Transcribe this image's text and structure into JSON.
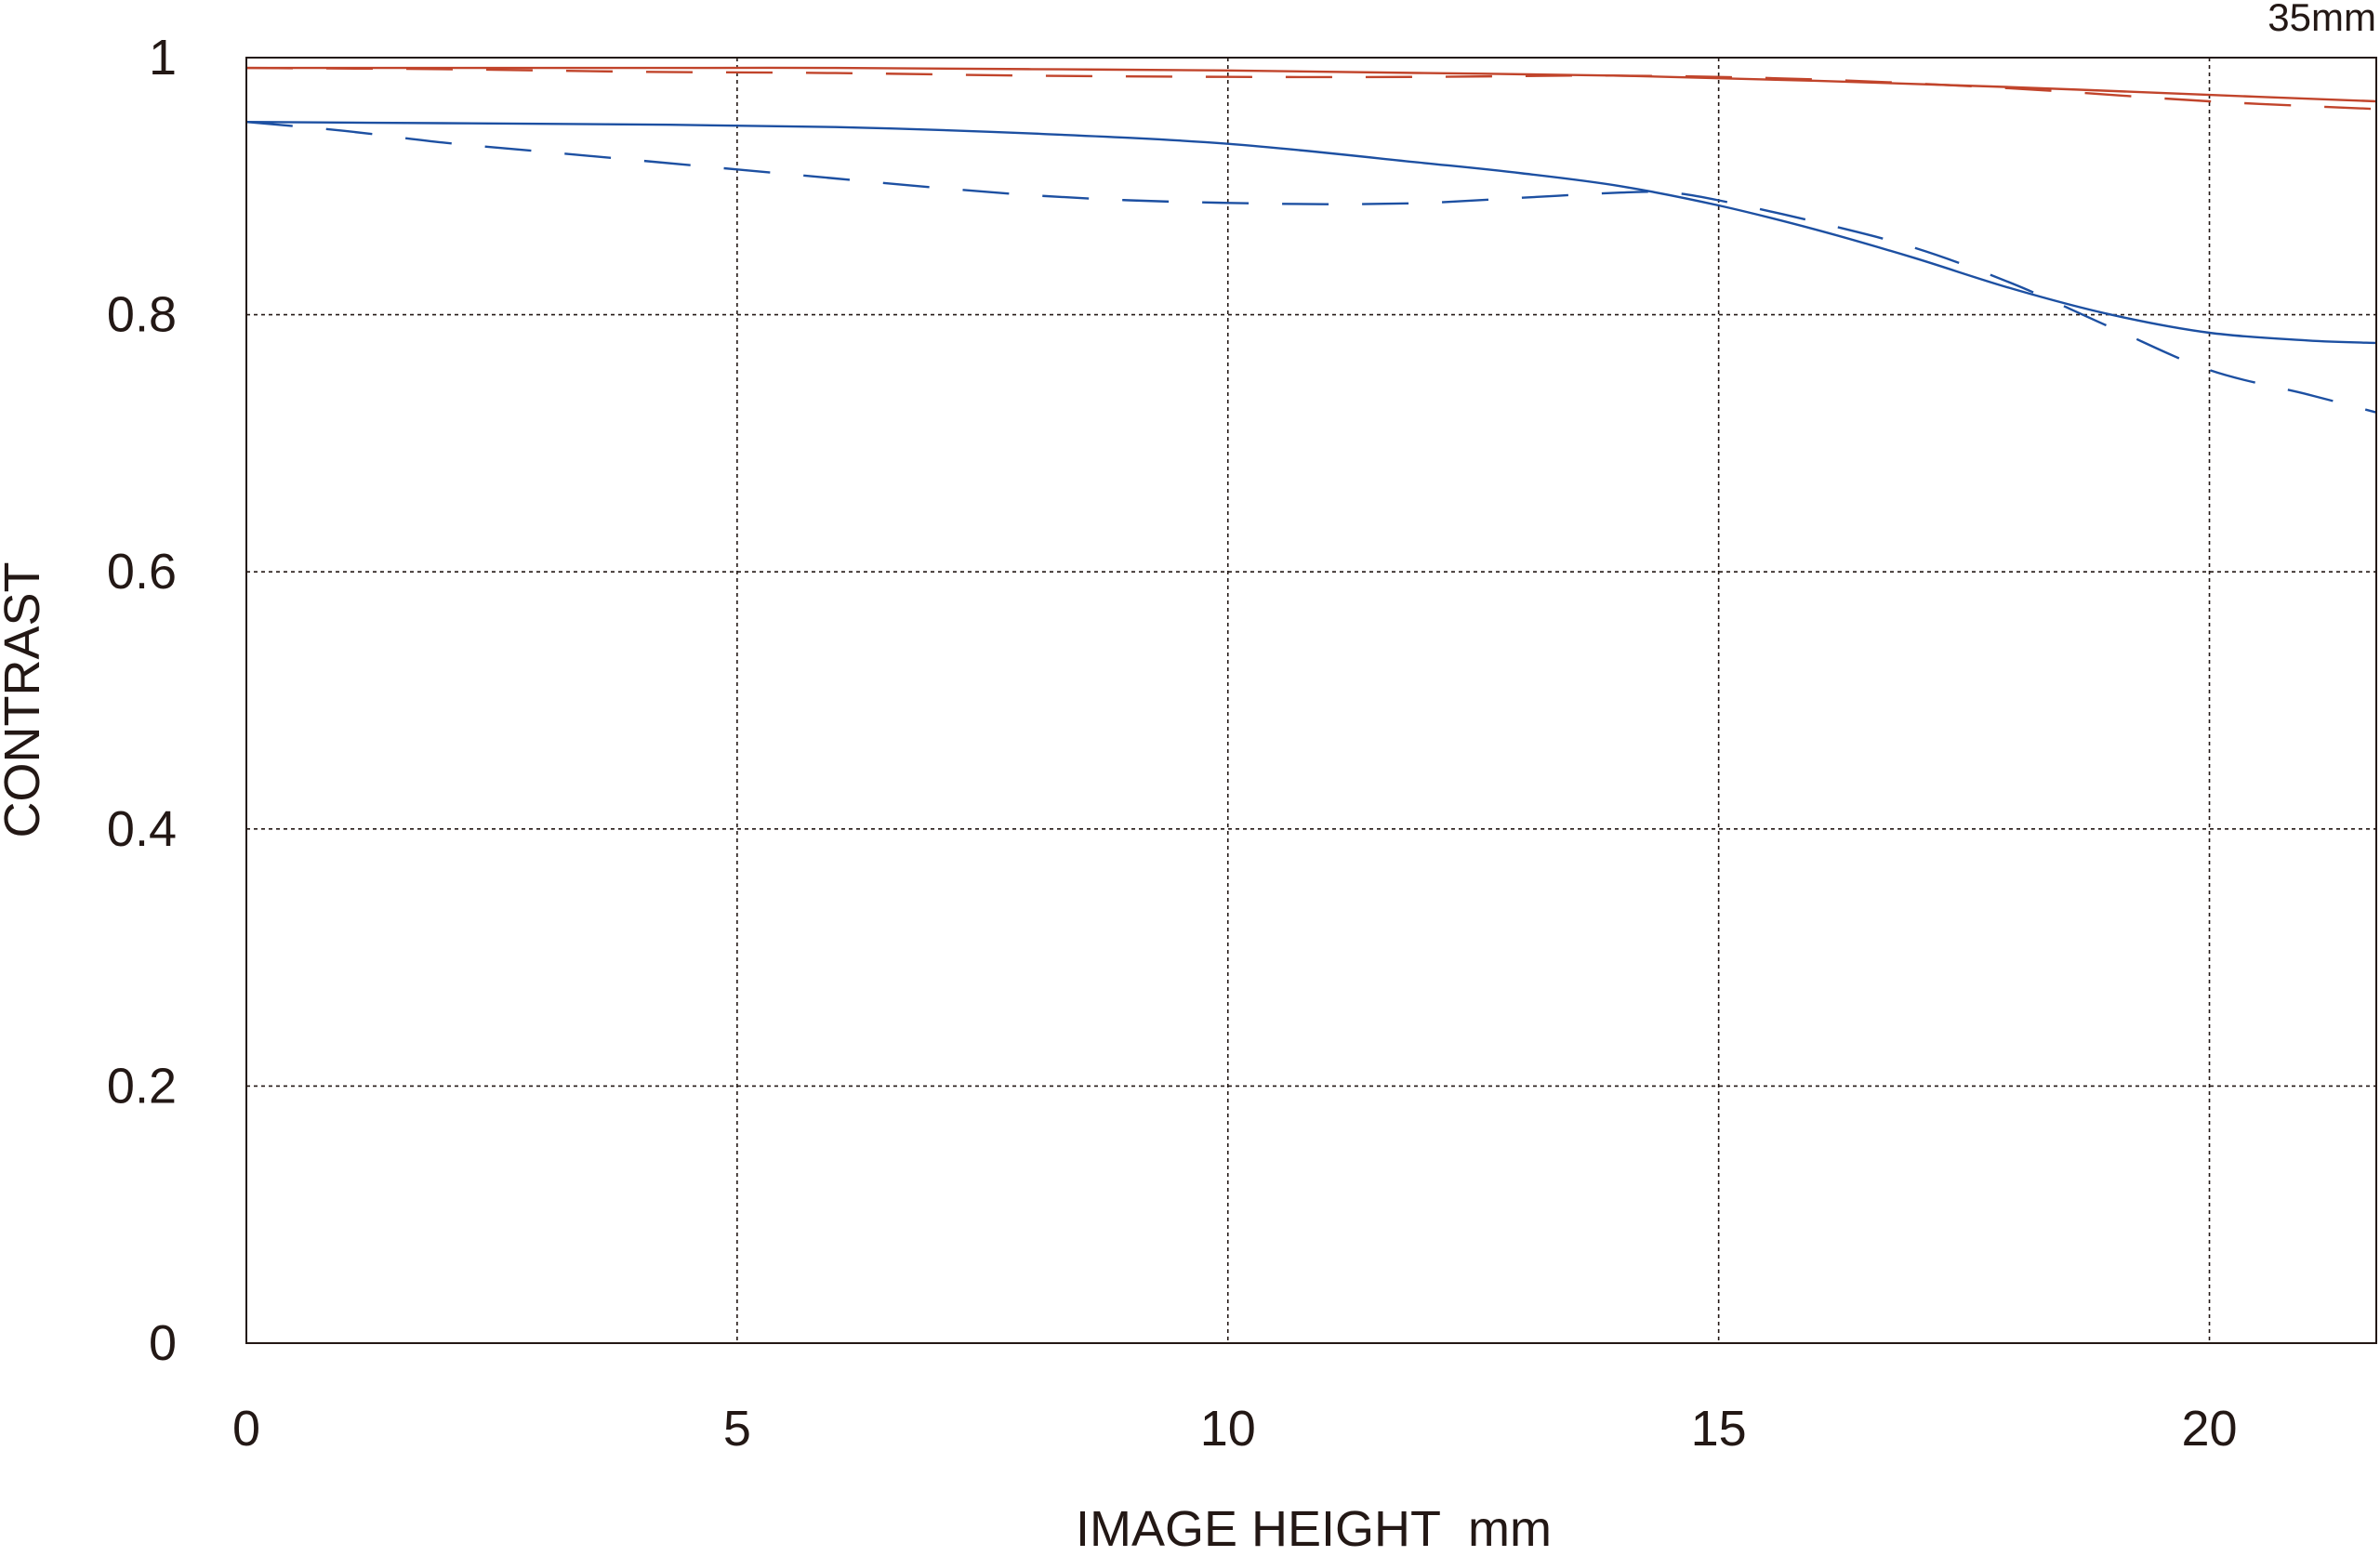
{
  "chart_data": {
    "type": "line",
    "title": "35mm",
    "xlabel": "IMAGE HEIGHT  mm",
    "ylabel": "CONTRAST",
    "xlim": [
      0,
      21.7
    ],
    "ylim": [
      0,
      1
    ],
    "x_ticks": [
      0,
      5,
      10,
      15,
      20
    ],
    "x_tick_labels": [
      "0",
      "5",
      "10",
      "15",
      "20"
    ],
    "y_ticks": [
      0,
      0.2,
      0.4,
      0.6,
      0.8,
      1
    ],
    "y_tick_labels": [
      "0",
      "0.2",
      "0.4",
      "0.6",
      "0.8",
      "1"
    ],
    "grid": true,
    "series": [
      {
        "color": "#c1442b",
        "style": "solid",
        "points": [
          [
            0,
            0.992
          ],
          [
            2,
            0.992
          ],
          [
            4,
            0.992
          ],
          [
            6,
            0.992
          ],
          [
            8,
            0.991
          ],
          [
            10,
            0.99
          ],
          [
            12,
            0.988
          ],
          [
            14,
            0.986
          ],
          [
            16,
            0.982
          ],
          [
            18,
            0.977
          ],
          [
            20,
            0.971
          ],
          [
            21.7,
            0.966
          ]
        ]
      },
      {
        "color": "#c1442b",
        "style": "dashed",
        "points": [
          [
            0,
            0.992
          ],
          [
            2,
            0.991
          ],
          [
            4,
            0.989
          ],
          [
            6,
            0.988
          ],
          [
            8,
            0.986
          ],
          [
            10,
            0.985
          ],
          [
            12,
            0.985
          ],
          [
            14,
            0.986
          ],
          [
            16,
            0.983
          ],
          [
            18,
            0.976
          ],
          [
            20,
            0.966
          ],
          [
            21.7,
            0.96
          ]
        ]
      },
      {
        "color": "#1d50a2",
        "style": "solid",
        "points": [
          [
            0,
            0.95
          ],
          [
            2,
            0.949
          ],
          [
            4,
            0.948
          ],
          [
            6,
            0.946
          ],
          [
            8,
            0.941
          ],
          [
            10,
            0.933
          ],
          [
            12,
            0.918
          ],
          [
            13,
            0.91
          ],
          [
            14,
            0.9
          ],
          [
            15,
            0.885
          ],
          [
            16,
            0.866
          ],
          [
            17,
            0.844
          ],
          [
            18,
            0.82
          ],
          [
            19,
            0.8
          ],
          [
            20,
            0.786
          ],
          [
            21,
            0.78
          ],
          [
            21.7,
            0.778
          ]
        ]
      },
      {
        "color": "#1d50a2",
        "style": "dashed",
        "points": [
          [
            0,
            0.95
          ],
          [
            1,
            0.943
          ],
          [
            2,
            0.934
          ],
          [
            3,
            0.927
          ],
          [
            4,
            0.92
          ],
          [
            5,
            0.913
          ],
          [
            6,
            0.906
          ],
          [
            7,
            0.899
          ],
          [
            8,
            0.893
          ],
          [
            9,
            0.889
          ],
          [
            10,
            0.887
          ],
          [
            11,
            0.886
          ],
          [
            12,
            0.887
          ],
          [
            13,
            0.891
          ],
          [
            14,
            0.895
          ],
          [
            14.5,
            0.895
          ],
          [
            15,
            0.889
          ],
          [
            16,
            0.872
          ],
          [
            17,
            0.852
          ],
          [
            18,
            0.824
          ],
          [
            19,
            0.79
          ],
          [
            20,
            0.757
          ],
          [
            21,
            0.738
          ],
          [
            21.7,
            0.724
          ]
        ]
      }
    ]
  }
}
